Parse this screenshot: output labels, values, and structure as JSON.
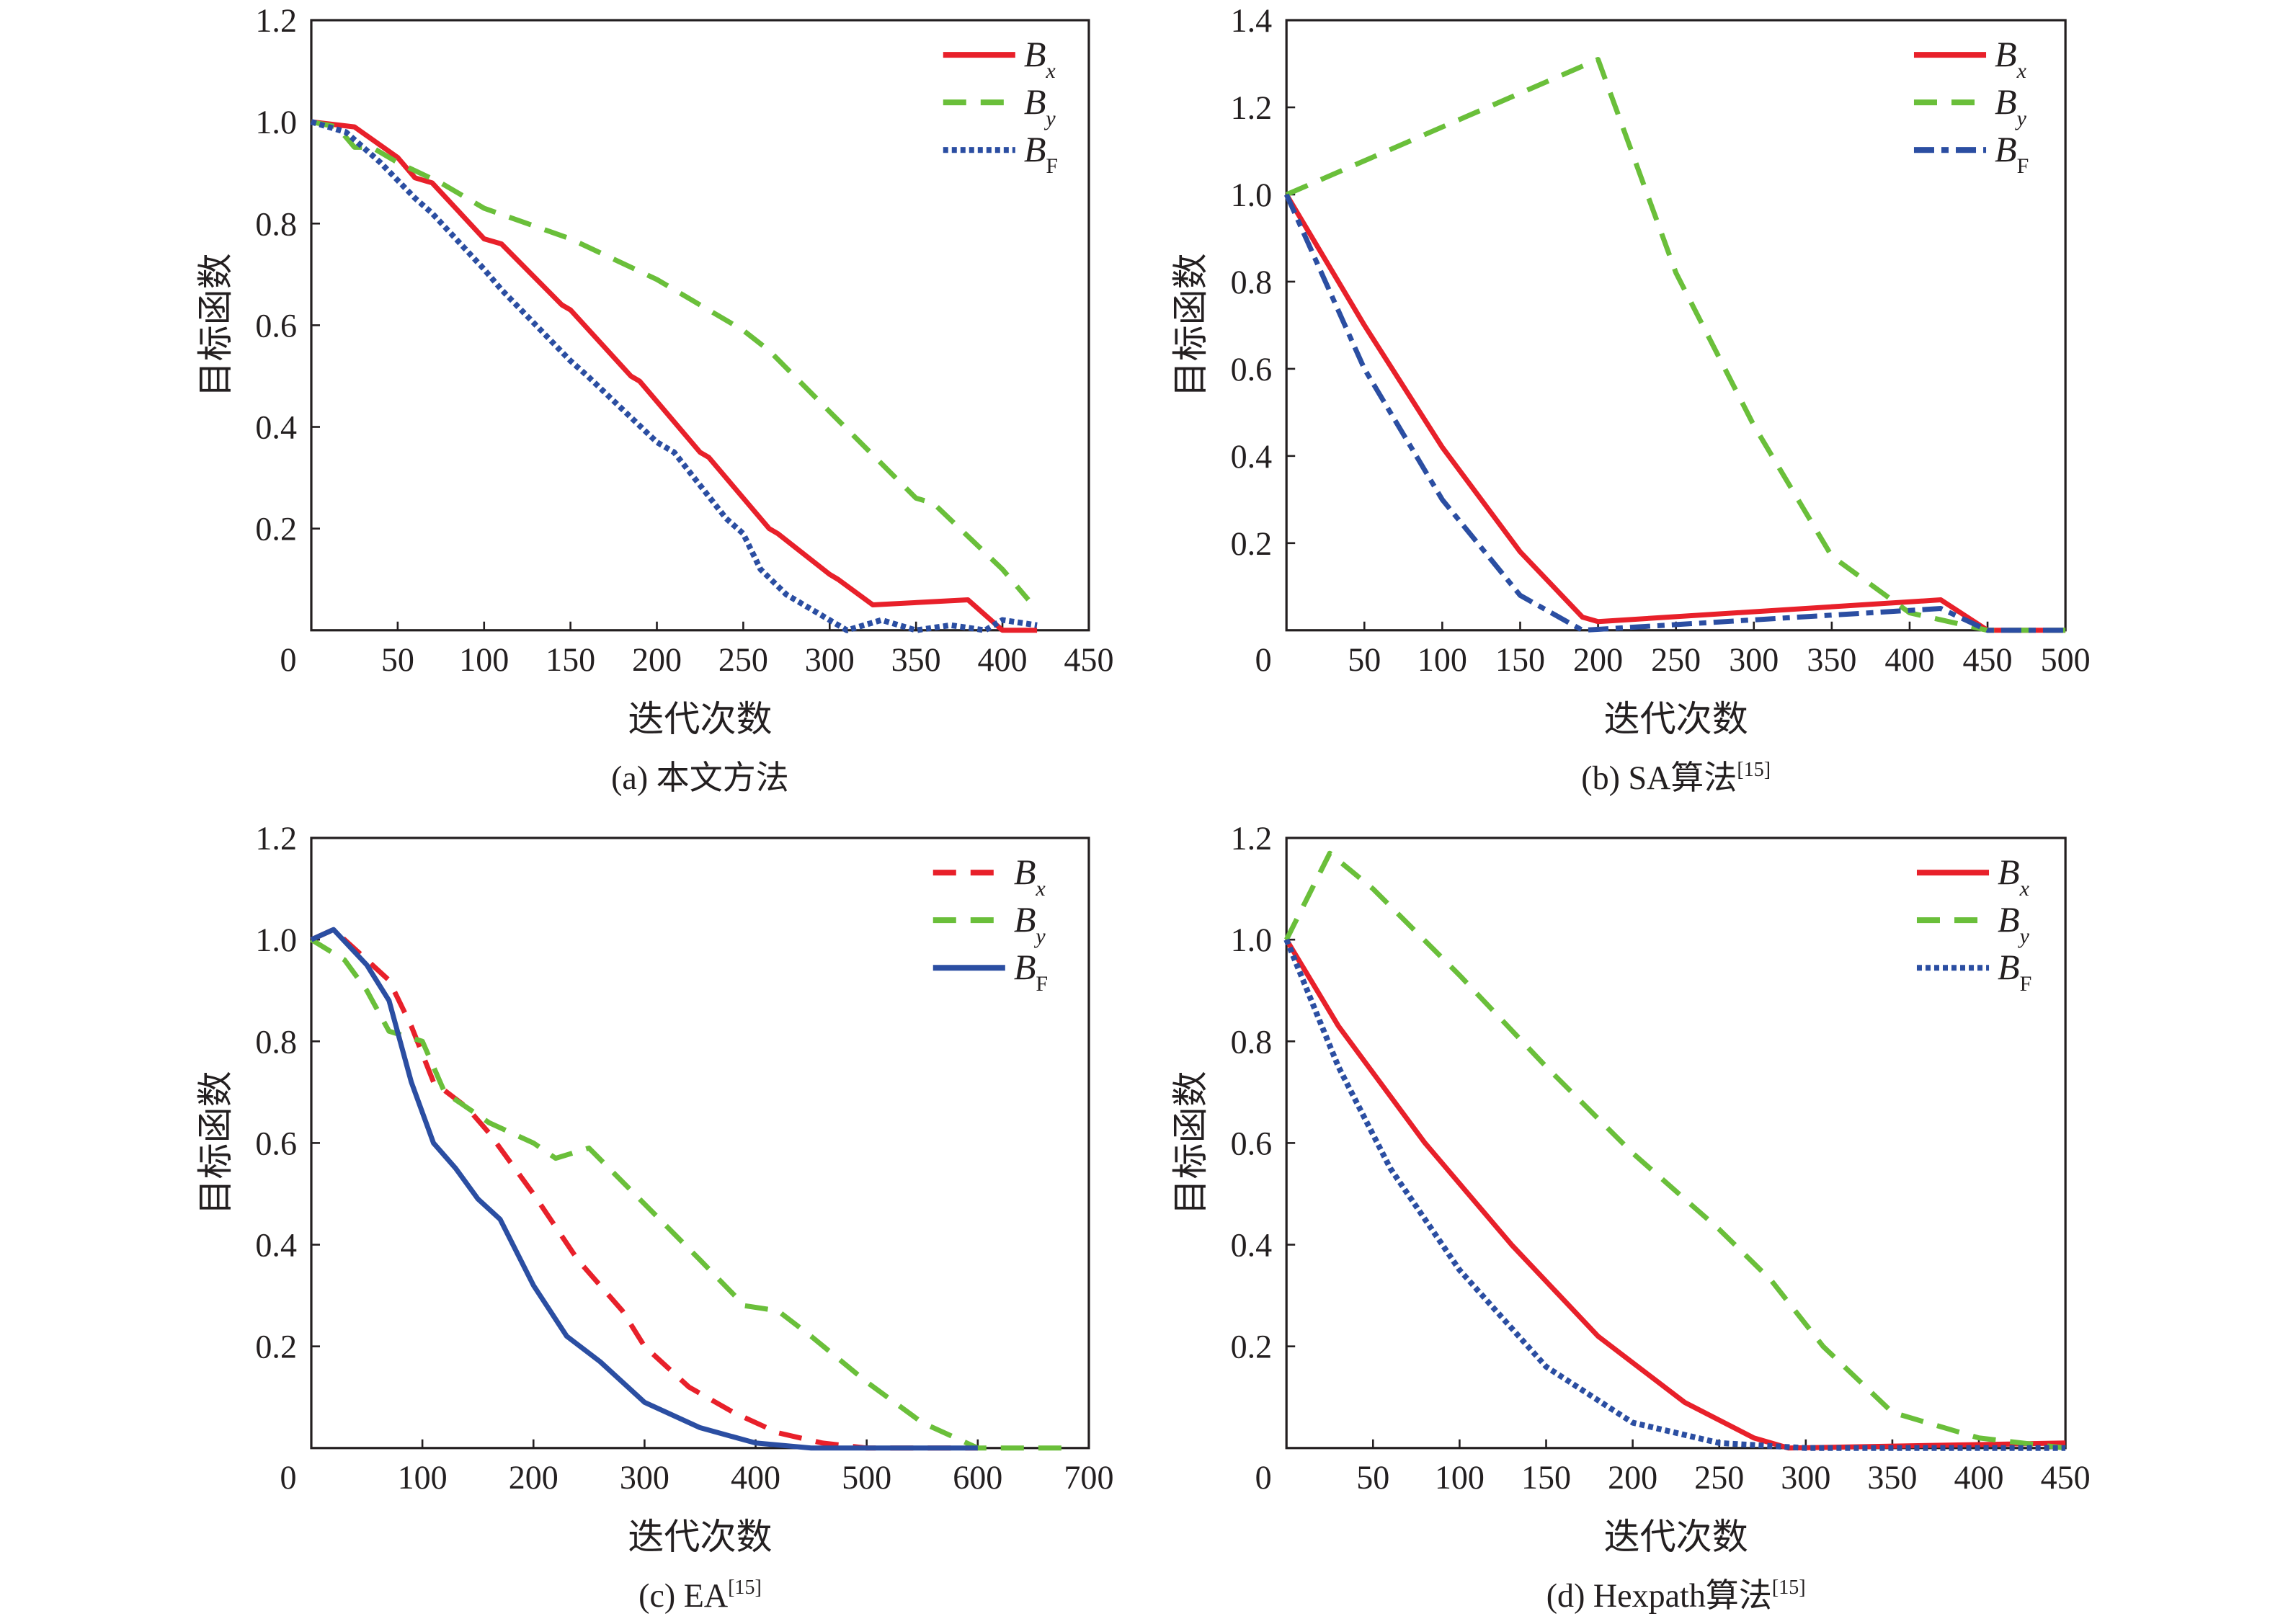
{
  "chart_data": [
    {
      "type": "line",
      "caption": "(a) 本文方法",
      "caption_sup": "",
      "xlabel": "迭代次数",
      "ylabel": "目标函数",
      "xlim": [
        0,
        450
      ],
      "ylim": [
        0,
        1.2
      ],
      "xticks": [
        0,
        50,
        100,
        150,
        200,
        250,
        300,
        350,
        400,
        450
      ],
      "yticks": [
        0.2,
        0.4,
        0.6,
        0.8,
        1.0,
        1.2
      ],
      "ytick_labels": [
        "0.2",
        "0.4",
        "0.6",
        "0.8",
        "1.0",
        "1.2"
      ],
      "legend": "top-right",
      "grid": false,
      "series": [
        {
          "name": "Bx",
          "color": "#e8202a",
          "style": "solid",
          "x": [
            0,
            25,
            50,
            60,
            70,
            100,
            110,
            145,
            150,
            185,
            190,
            225,
            230,
            265,
            270,
            300,
            305,
            325,
            380,
            400,
            420
          ],
          "y": [
            1.0,
            0.99,
            0.93,
            0.89,
            0.88,
            0.77,
            0.76,
            0.64,
            0.63,
            0.5,
            0.49,
            0.35,
            0.34,
            0.2,
            0.19,
            0.11,
            0.1,
            0.05,
            0.06,
            0.0,
            0.0
          ]
        },
        {
          "name": "By",
          "color": "#6abf3a",
          "style": "dashed",
          "x": [
            0,
            15,
            25,
            35,
            50,
            75,
            100,
            150,
            200,
            250,
            265,
            300,
            350,
            360,
            400,
            415
          ],
          "y": [
            1.0,
            0.99,
            0.95,
            0.95,
            0.92,
            0.88,
            0.83,
            0.77,
            0.69,
            0.59,
            0.55,
            0.43,
            0.26,
            0.25,
            0.12,
            0.06
          ]
        },
        {
          "name": "BF",
          "color": "#2b4ea2",
          "style": "dotted",
          "x": [
            0,
            20,
            40,
            60,
            70,
            100,
            110,
            150,
            160,
            200,
            210,
            240,
            250,
            260,
            275,
            300,
            310,
            330,
            350,
            370,
            390,
            400,
            420
          ],
          "y": [
            1.0,
            0.98,
            0.92,
            0.85,
            0.82,
            0.71,
            0.67,
            0.53,
            0.5,
            0.37,
            0.35,
            0.22,
            0.19,
            0.12,
            0.07,
            0.02,
            0.0,
            0.02,
            0.0,
            0.01,
            0.0,
            0.02,
            0.01
          ]
        }
      ]
    },
    {
      "type": "line",
      "caption": "(b) SA算法",
      "caption_sup": "[15]",
      "xlabel": "迭代次数",
      "ylabel": "目标函数",
      "xlim": [
        0,
        500
      ],
      "ylim": [
        0,
        1.4
      ],
      "xticks": [
        0,
        50,
        100,
        150,
        200,
        250,
        300,
        350,
        400,
        450,
        500
      ],
      "yticks": [
        0.2,
        0.4,
        0.6,
        0.8,
        1.0,
        1.2,
        1.4
      ],
      "ytick_labels": [
        "0.2",
        "0.4",
        "0.6",
        "0.8",
        "1.0",
        "1.2",
        "1.4"
      ],
      "legend": "top-right",
      "grid": false,
      "series": [
        {
          "name": "Bx",
          "color": "#e8202a",
          "style": "solid",
          "x": [
            0,
            50,
            100,
            150,
            190,
            200,
            420,
            450,
            500
          ],
          "y": [
            1.0,
            0.7,
            0.42,
            0.18,
            0.03,
            0.02,
            0.07,
            0.0,
            0.0
          ]
        },
        {
          "name": "By",
          "color": "#6abf3a",
          "style": "dashed",
          "x": [
            0,
            200,
            250,
            300,
            350,
            400,
            450,
            500
          ],
          "y": [
            1.0,
            1.31,
            0.82,
            0.47,
            0.17,
            0.04,
            0.0,
            0.0
          ]
        },
        {
          "name": "BF",
          "color": "#2b4ea2",
          "style": "dashdot",
          "x": [
            0,
            50,
            100,
            150,
            190,
            420,
            450,
            500
          ],
          "y": [
            1.0,
            0.6,
            0.3,
            0.08,
            0.0,
            0.05,
            0.0,
            0.0
          ]
        }
      ]
    },
    {
      "type": "line",
      "caption": "(c) EA",
      "caption_sup": "[15]",
      "xlabel": "迭代次数",
      "ylabel": "目标函数",
      "xlim": [
        0,
        700
      ],
      "ylim": [
        0,
        1.2
      ],
      "xticks": [
        0,
        100,
        200,
        300,
        400,
        500,
        600,
        700
      ],
      "yticks": [
        0.2,
        0.4,
        0.6,
        0.8,
        1.0,
        1.2
      ],
      "ytick_labels": [
        "0.2",
        "0.4",
        "0.6",
        "0.8",
        "1.0",
        "1.2"
      ],
      "legend": "top-right",
      "grid": false,
      "series": [
        {
          "name": "Bx",
          "color": "#e8202a",
          "style": "dashed",
          "x": [
            0,
            20,
            50,
            70,
            90,
            110,
            140,
            160,
            200,
            240,
            280,
            300,
            340,
            380,
            420,
            460,
            500,
            600
          ],
          "y": [
            1.0,
            1.02,
            0.96,
            0.92,
            0.83,
            0.72,
            0.67,
            0.62,
            0.5,
            0.37,
            0.27,
            0.2,
            0.12,
            0.07,
            0.03,
            0.01,
            0.0,
            0.0
          ]
        },
        {
          "name": "By",
          "color": "#6abf3a",
          "style": "dashed",
          "x": [
            0,
            30,
            50,
            70,
            100,
            120,
            160,
            200,
            220,
            250,
            300,
            350,
            390,
            420,
            450,
            500,
            550,
            600,
            680
          ],
          "y": [
            1.0,
            0.96,
            0.9,
            0.82,
            0.8,
            0.7,
            0.64,
            0.6,
            0.57,
            0.59,
            0.48,
            0.37,
            0.28,
            0.27,
            0.22,
            0.13,
            0.05,
            0.0,
            0.0
          ]
        },
        {
          "name": "BF",
          "color": "#2b4ea2",
          "style": "solid",
          "x": [
            0,
            20,
            50,
            70,
            90,
            110,
            130,
            150,
            170,
            200,
            230,
            260,
            300,
            350,
            400,
            450,
            600
          ],
          "y": [
            1.0,
            1.02,
            0.95,
            0.88,
            0.72,
            0.6,
            0.55,
            0.49,
            0.45,
            0.32,
            0.22,
            0.17,
            0.09,
            0.04,
            0.01,
            0.0,
            0.0
          ]
        }
      ]
    },
    {
      "type": "line",
      "caption": "(d) Hexpath算法",
      "caption_sup": "[15]",
      "xlabel": "迭代次数",
      "ylabel": "目标函数",
      "xlim": [
        0,
        450
      ],
      "ylim": [
        0,
        1.2
      ],
      "xticks": [
        0,
        50,
        100,
        150,
        200,
        250,
        300,
        350,
        400,
        450
      ],
      "yticks": [
        0.2,
        0.4,
        0.6,
        0.8,
        1.0,
        1.2
      ],
      "ytick_labels": [
        "0.2",
        "0.4",
        "0.6",
        "0.8",
        "1.0",
        "1.2"
      ],
      "legend": "top-right",
      "grid": false,
      "series": [
        {
          "name": "Bx",
          "color": "#e8202a",
          "style": "solid",
          "x": [
            0,
            30,
            80,
            130,
            180,
            230,
            270,
            290,
            450
          ],
          "y": [
            1.0,
            0.83,
            0.6,
            0.4,
            0.22,
            0.09,
            0.02,
            0.0,
            0.01
          ]
        },
        {
          "name": "By",
          "color": "#6abf3a",
          "style": "dashed",
          "x": [
            0,
            25,
            50,
            100,
            150,
            200,
            250,
            280,
            310,
            350,
            400,
            450
          ],
          "y": [
            1.0,
            1.17,
            1.1,
            0.93,
            0.75,
            0.58,
            0.43,
            0.33,
            0.2,
            0.07,
            0.02,
            0.0
          ]
        },
        {
          "name": "BF",
          "color": "#2b4ea2",
          "style": "dotted",
          "x": [
            0,
            30,
            60,
            100,
            150,
            200,
            250,
            300,
            450
          ],
          "y": [
            1.0,
            0.75,
            0.55,
            0.35,
            0.16,
            0.05,
            0.01,
            0.0,
            0.0
          ]
        }
      ]
    }
  ]
}
